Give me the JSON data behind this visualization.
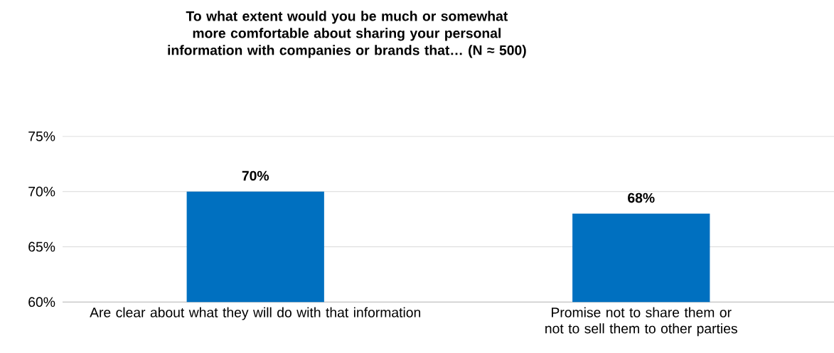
{
  "chart_data": {
    "type": "bar",
    "title": "To what extent would you be much or somewhat more comfortable about sharing your personal information with companies or brands that… (N ≈ 500)",
    "categories": [
      "Are clear about what they will do with that information",
      "Promise not to share them or not to sell them to other parties"
    ],
    "values": [
      70,
      68
    ],
    "value_labels": [
      "70%",
      "68%"
    ],
    "color": "#0070c0",
    "ylim": [
      60,
      75
    ],
    "yticks": [
      {
        "value": 60,
        "label": "60%"
      },
      {
        "value": 65,
        "label": "65%"
      },
      {
        "value": 70,
        "label": "70%"
      },
      {
        "value": 75,
        "label": "75%"
      }
    ],
    "grid": "y"
  }
}
